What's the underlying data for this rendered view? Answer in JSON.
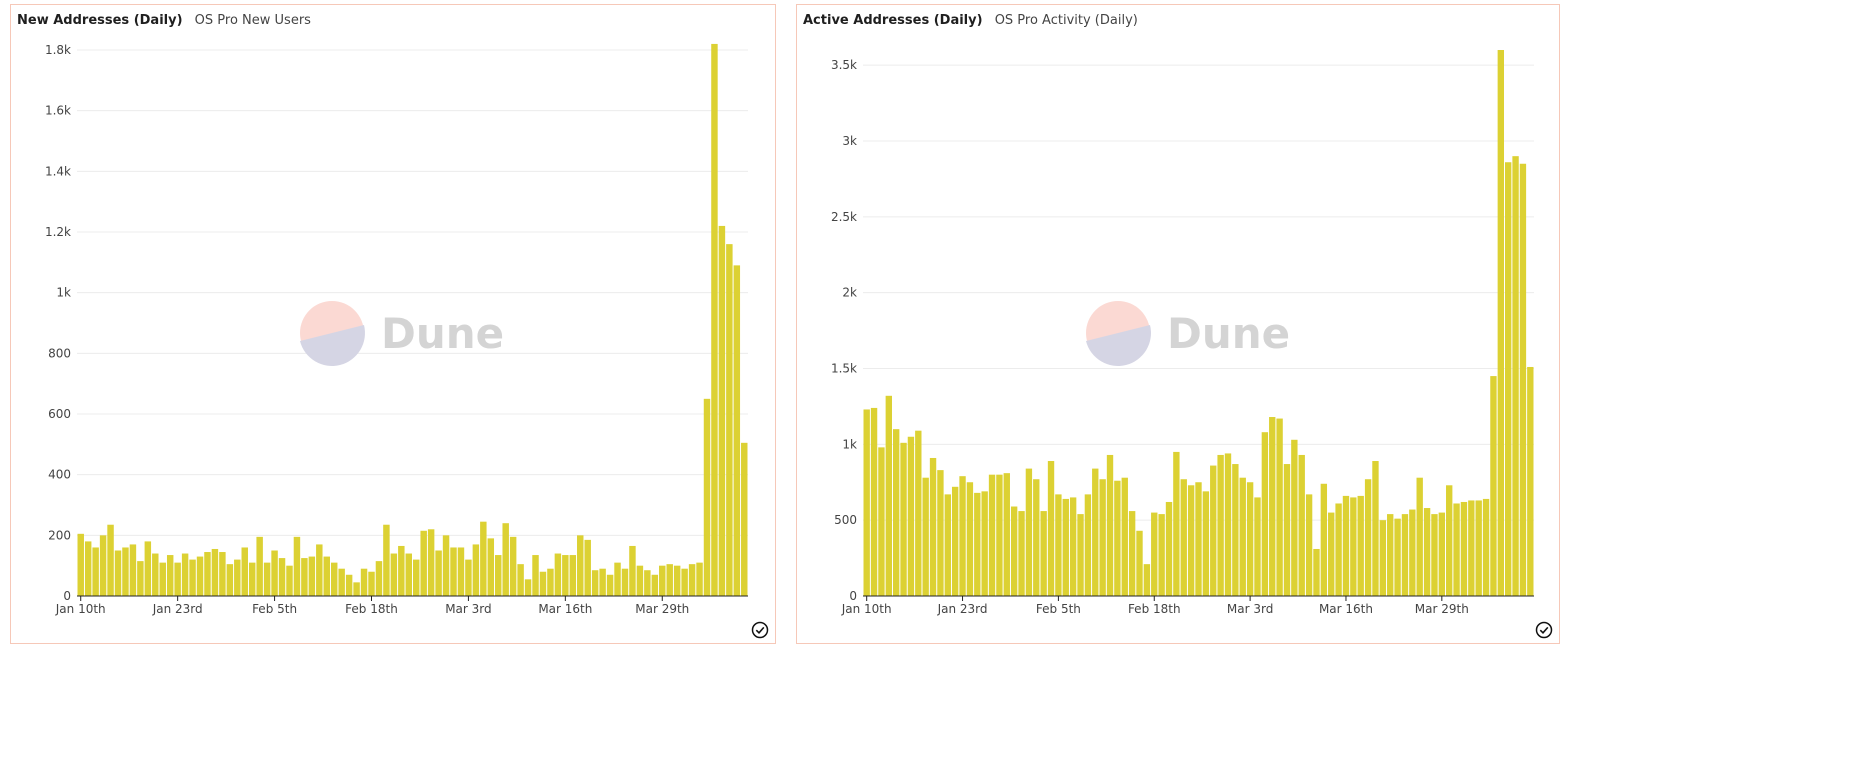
{
  "colors": {
    "bar": "#dcd133",
    "border": "#f6c8b8"
  },
  "panels": [
    {
      "title": "New Addresses (Daily)",
      "subtitle": "OS Pro New Users",
      "watermark": "Dune"
    },
    {
      "title": "Active Addresses (Daily)",
      "subtitle": "OS Pro Activity (Daily)",
      "watermark": "Dune"
    }
  ],
  "chart_data": [
    {
      "type": "bar",
      "title": "New Addresses (Daily)",
      "ylim": [
        0,
        1800
      ],
      "yticks": [
        0,
        200,
        400,
        600,
        800,
        1000,
        1200,
        1400,
        1600,
        1800
      ],
      "ytick_labels": [
        "0",
        "200",
        "400",
        "600",
        "800",
        "1k",
        "1.2k",
        "1.4k",
        "1.6k",
        "1.8k"
      ],
      "xtick_labels": [
        "Jan 10th",
        "Jan 23rd",
        "Feb 5th",
        "Feb 18th",
        "Mar 3rd",
        "Mar 16th",
        "Mar 29th"
      ],
      "xtick_index": [
        0,
        13,
        26,
        39,
        52,
        65,
        78
      ],
      "values": [
        205,
        180,
        160,
        200,
        235,
        150,
        160,
        170,
        115,
        180,
        140,
        110,
        135,
        110,
        140,
        120,
        130,
        145,
        155,
        145,
        105,
        120,
        160,
        110,
        195,
        110,
        150,
        125,
        100,
        195,
        125,
        130,
        170,
        130,
        110,
        90,
        70,
        45,
        90,
        80,
        115,
        235,
        140,
        165,
        140,
        120,
        215,
        220,
        150,
        200,
        160,
        160,
        120,
        170,
        245,
        190,
        135,
        240,
        195,
        105,
        55,
        135,
        80,
        90,
        140,
        135,
        135,
        200,
        185,
        85,
        90,
        70,
        110,
        90,
        165,
        100,
        85,
        70,
        100,
        105,
        100,
        90,
        105,
        110,
        650,
        1820,
        1220,
        1160,
        1090,
        505
      ]
    },
    {
      "type": "bar",
      "title": "Active Addresses (Daily)",
      "ylim": [
        0,
        3600
      ],
      "yticks": [
        0,
        500,
        1000,
        1500,
        2000,
        2500,
        3000,
        3500
      ],
      "ytick_labels": [
        "0",
        "500",
        "1k",
        "1.5k",
        "2k",
        "2.5k",
        "3k",
        "3.5k"
      ],
      "xtick_labels": [
        "Jan 10th",
        "Jan 23rd",
        "Feb 5th",
        "Feb 18th",
        "Mar 3rd",
        "Mar 16th",
        "Mar 29th"
      ],
      "xtick_index": [
        0,
        13,
        26,
        39,
        52,
        65,
        78
      ],
      "values": [
        1230,
        1240,
        980,
        1320,
        1100,
        1010,
        1050,
        1090,
        780,
        910,
        830,
        670,
        720,
        790,
        750,
        680,
        690,
        800,
        800,
        810,
        590,
        560,
        840,
        770,
        560,
        890,
        670,
        640,
        650,
        540,
        670,
        840,
        770,
        930,
        760,
        780,
        560,
        430,
        210,
        550,
        540,
        620,
        950,
        770,
        730,
        750,
        690,
        860,
        930,
        940,
        870,
        780,
        750,
        650,
        1080,
        1180,
        1170,
        870,
        1030,
        930,
        670,
        310,
        740,
        550,
        610,
        660,
        650,
        660,
        770,
        890,
        500,
        540,
        510,
        540,
        570,
        780,
        580,
        540,
        550,
        730,
        610,
        620,
        630,
        630,
        640,
        1450,
        3600,
        2860,
        2900,
        2850,
        1510
      ]
    }
  ]
}
